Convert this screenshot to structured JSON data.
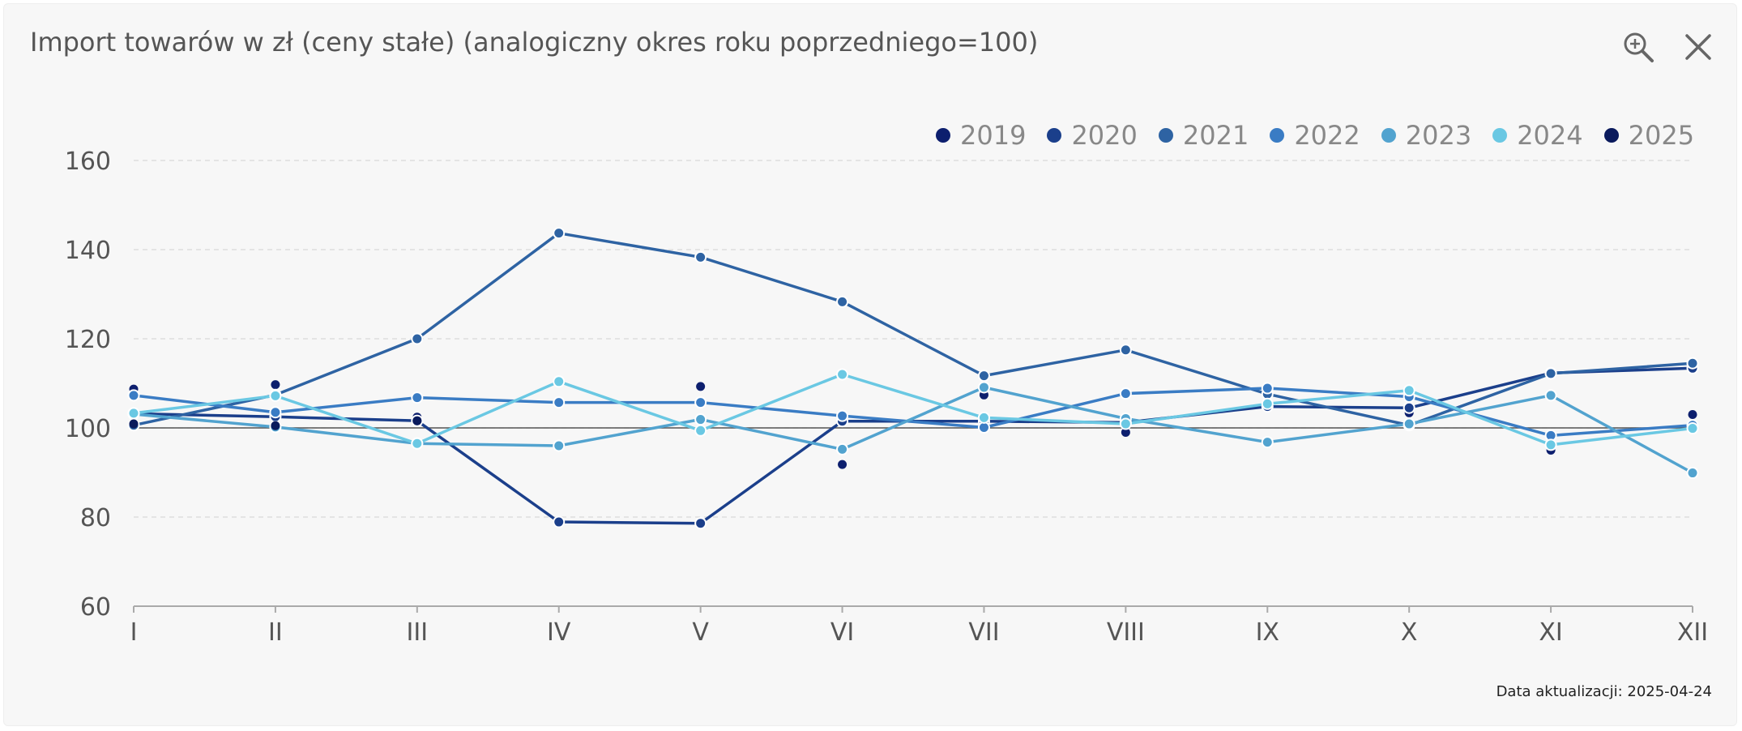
{
  "header": {
    "title": "Import towarów w zł (ceny stałe) (analogiczny okres roku poprzedniego=100)",
    "zoom_icon": "zoom-in-icon",
    "close_icon": "close-icon"
  },
  "footer": {
    "update_label": "Data aktualizacji: 2025-04-24"
  },
  "chart_data": {
    "type": "line",
    "title": "Import towarów w zł (ceny stałe) (analogiczny okres roku poprzedniego=100)",
    "xlabel": "",
    "ylabel": "",
    "categories": [
      "I",
      "II",
      "III",
      "IV",
      "V",
      "VI",
      "VII",
      "VIII",
      "IX",
      "X",
      "XI",
      "XII"
    ],
    "ylim": [
      60,
      160
    ],
    "yticks": [
      60,
      80,
      100,
      120,
      140,
      160
    ],
    "reference_line": 100,
    "grid": "horizontal dashed",
    "legend_position": "top-right",
    "series": [
      {
        "name": "2019",
        "color": "#0d1f6e",
        "markers_only": true,
        "values": [
          108.7,
          109.7,
          102.4,
          null,
          109.3,
          91.8,
          107.4,
          99.0,
          107.7,
          103.4,
          95.0,
          103.0
        ]
      },
      {
        "name": "2020",
        "color": "#1b3f8b",
        "markers_only": false,
        "values": [
          103.2,
          102.5,
          101.6,
          78.9,
          78.6,
          101.5,
          101.5,
          101.2,
          104.8,
          104.5,
          112.3,
          113.4
        ]
      },
      {
        "name": "2021",
        "color": "#2e63a3",
        "markers_only": false,
        "values": [
          100.6,
          107.4,
          120.0,
          143.7,
          138.3,
          128.3,
          111.7,
          117.5,
          107.6,
          100.6,
          112.2,
          114.5
        ]
      },
      {
        "name": "2022",
        "color": "#3a7cc4",
        "markers_only": false,
        "values": [
          107.3,
          103.5,
          106.8,
          105.7,
          105.7,
          102.7,
          100.1,
          107.7,
          108.9,
          107.0,
          98.3,
          100.6
        ]
      },
      {
        "name": "2023",
        "color": "#52a3cf",
        "markers_only": false,
        "values": [
          103.1,
          100.2,
          96.5,
          96.0,
          101.9,
          95.2,
          109.1,
          102.1,
          96.8,
          100.9,
          107.3,
          89.9
        ]
      },
      {
        "name": "2024",
        "color": "#6ac8e3",
        "markers_only": false,
        "values": [
          103.3,
          107.2,
          96.5,
          110.4,
          99.4,
          112.0,
          102.3,
          100.9,
          105.4,
          108.4,
          96.2,
          99.9
        ]
      },
      {
        "name": "2025",
        "color": "#0a1a5c",
        "markers_only": true,
        "values": [
          100.9,
          100.5,
          101.6,
          null,
          null,
          null,
          null,
          null,
          null,
          null,
          null,
          null
        ]
      }
    ]
  }
}
